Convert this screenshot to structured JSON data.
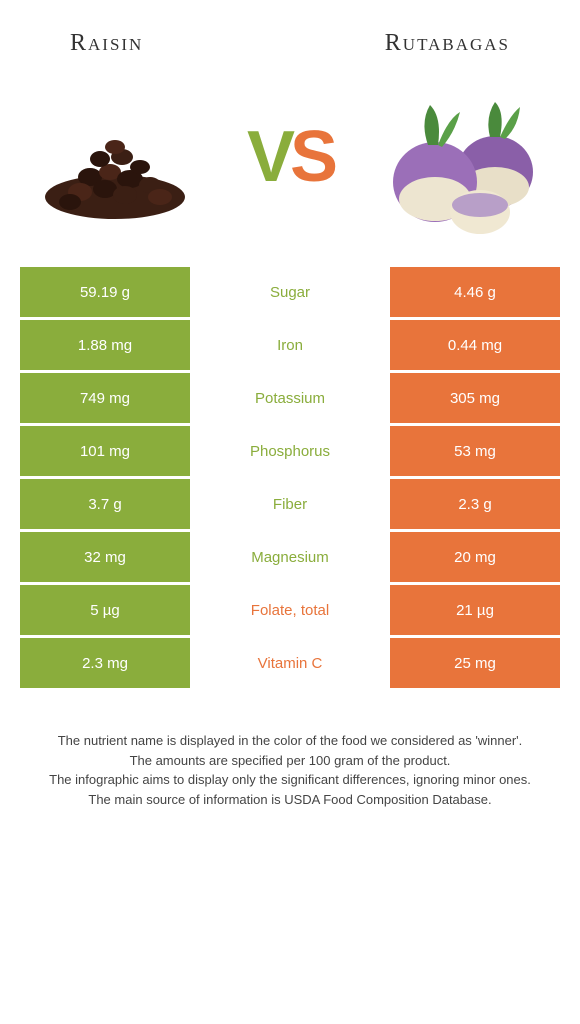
{
  "header": {
    "left": "Raisin",
    "right": "Rutabagas"
  },
  "vs": {
    "v": "V",
    "s": "S"
  },
  "colors": {
    "left": "#8aad3c",
    "right": "#e8743b"
  },
  "rows": [
    {
      "left": "59.19 g",
      "label": "Sugar",
      "right": "4.46 g",
      "winner": "left"
    },
    {
      "left": "1.88 mg",
      "label": "Iron",
      "right": "0.44 mg",
      "winner": "left"
    },
    {
      "left": "749 mg",
      "label": "Potassium",
      "right": "305 mg",
      "winner": "left"
    },
    {
      "left": "101 mg",
      "label": "Phosphorus",
      "right": "53 mg",
      "winner": "left"
    },
    {
      "left": "3.7 g",
      "label": "Fiber",
      "right": "2.3 g",
      "winner": "left"
    },
    {
      "left": "32 mg",
      "label": "Magnesium",
      "right": "20 mg",
      "winner": "left"
    },
    {
      "left": "5 µg",
      "label": "Folate, total",
      "right": "21 µg",
      "winner": "right"
    },
    {
      "left": "2.3 mg",
      "label": "Vitamin C",
      "right": "25 mg",
      "winner": "right"
    }
  ],
  "footer": {
    "l1": "The nutrient name is displayed in the color of the food we considered as 'winner'.",
    "l2": "The amounts are specified per 100 gram of the product.",
    "l3": "The infographic aims to display only the significant differences, ignoring minor ones.",
    "l4": "The main source of information is USDA Food Composition Database."
  }
}
